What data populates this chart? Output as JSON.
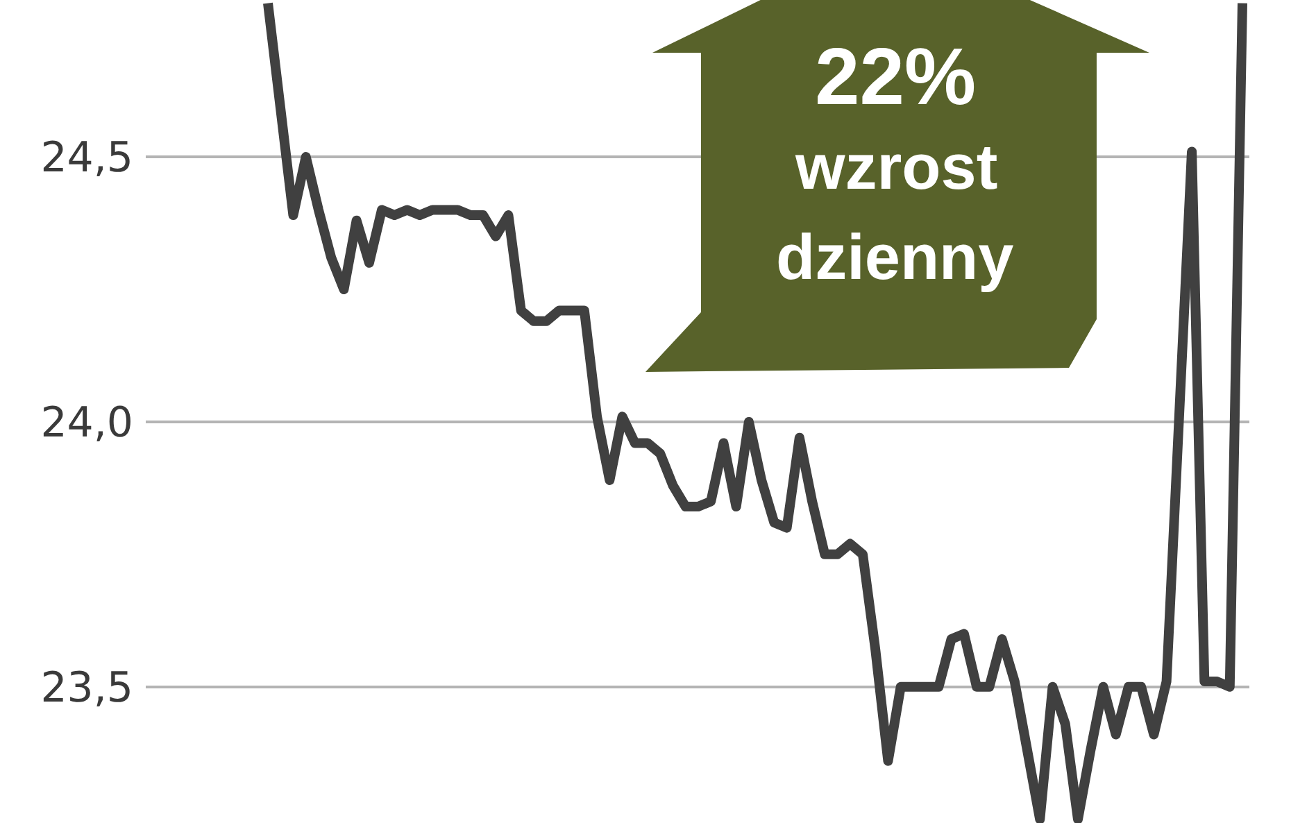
{
  "chart_data": {
    "type": "line",
    "categories": [
      null,
      null,
      null,
      null,
      null,
      null,
      null,
      null,
      null,
      null,
      null,
      null,
      null,
      null,
      null,
      null,
      null,
      null,
      null,
      null,
      null,
      null,
      null,
      null,
      null,
      null,
      null,
      null,
      null,
      null,
      null,
      null,
      null,
      null,
      null,
      null,
      null,
      null,
      null,
      null,
      null,
      null,
      null,
      null,
      null,
      null,
      null,
      null,
      null,
      null,
      null,
      null,
      null,
      null,
      null,
      null,
      null,
      null,
      null,
      null,
      null,
      null,
      null,
      null,
      null,
      null,
      null,
      null,
      null,
      null,
      null,
      null,
      null,
      null,
      null,
      null,
      null,
      null
    ],
    "series": [
      {
        "color": "#404040",
        "values": [
          24.79,
          24.59,
          24.39,
          24.5,
          24.4,
          24.31,
          24.25,
          24.38,
          24.3,
          24.4,
          24.39,
          24.4,
          24.39,
          24.4,
          24.4,
          24.4,
          24.39,
          24.39,
          24.35,
          24.39,
          24.21,
          24.19,
          24.19,
          24.21,
          24.21,
          24.21,
          24.01,
          23.89,
          24.01,
          23.96,
          23.96,
          23.94,
          23.88,
          23.84,
          23.84,
          23.85,
          23.96,
          23.84,
          24.0,
          23.89,
          23.81,
          23.8,
          23.97,
          23.85,
          23.75,
          23.75,
          23.77,
          23.75,
          23.57,
          23.36,
          23.5,
          23.5,
          23.5,
          23.5,
          23.59,
          23.6,
          23.5,
          23.5,
          23.59,
          23.51,
          23.38,
          23.25,
          23.5,
          23.43,
          23.25,
          23.38,
          23.5,
          23.41,
          23.5,
          23.5,
          23.41,
          23.51,
          24.01,
          24.51,
          23.51,
          23.51,
          23.5,
          24.79
        ]
      }
    ],
    "ylim": [
      23.243,
      24.796
    ],
    "yticks": [
      {
        "value": 23.5,
        "label": "23,5"
      },
      {
        "value": 24.0,
        "label": "24,0"
      },
      {
        "value": 24.5,
        "label": "24,5"
      }
    ],
    "grid": "y",
    "marker": "none",
    "line_style": "solid",
    "tick_labels": "y",
    "annotations": [
      "22%\nwzrost\ndzienny"
    ]
  }
}
